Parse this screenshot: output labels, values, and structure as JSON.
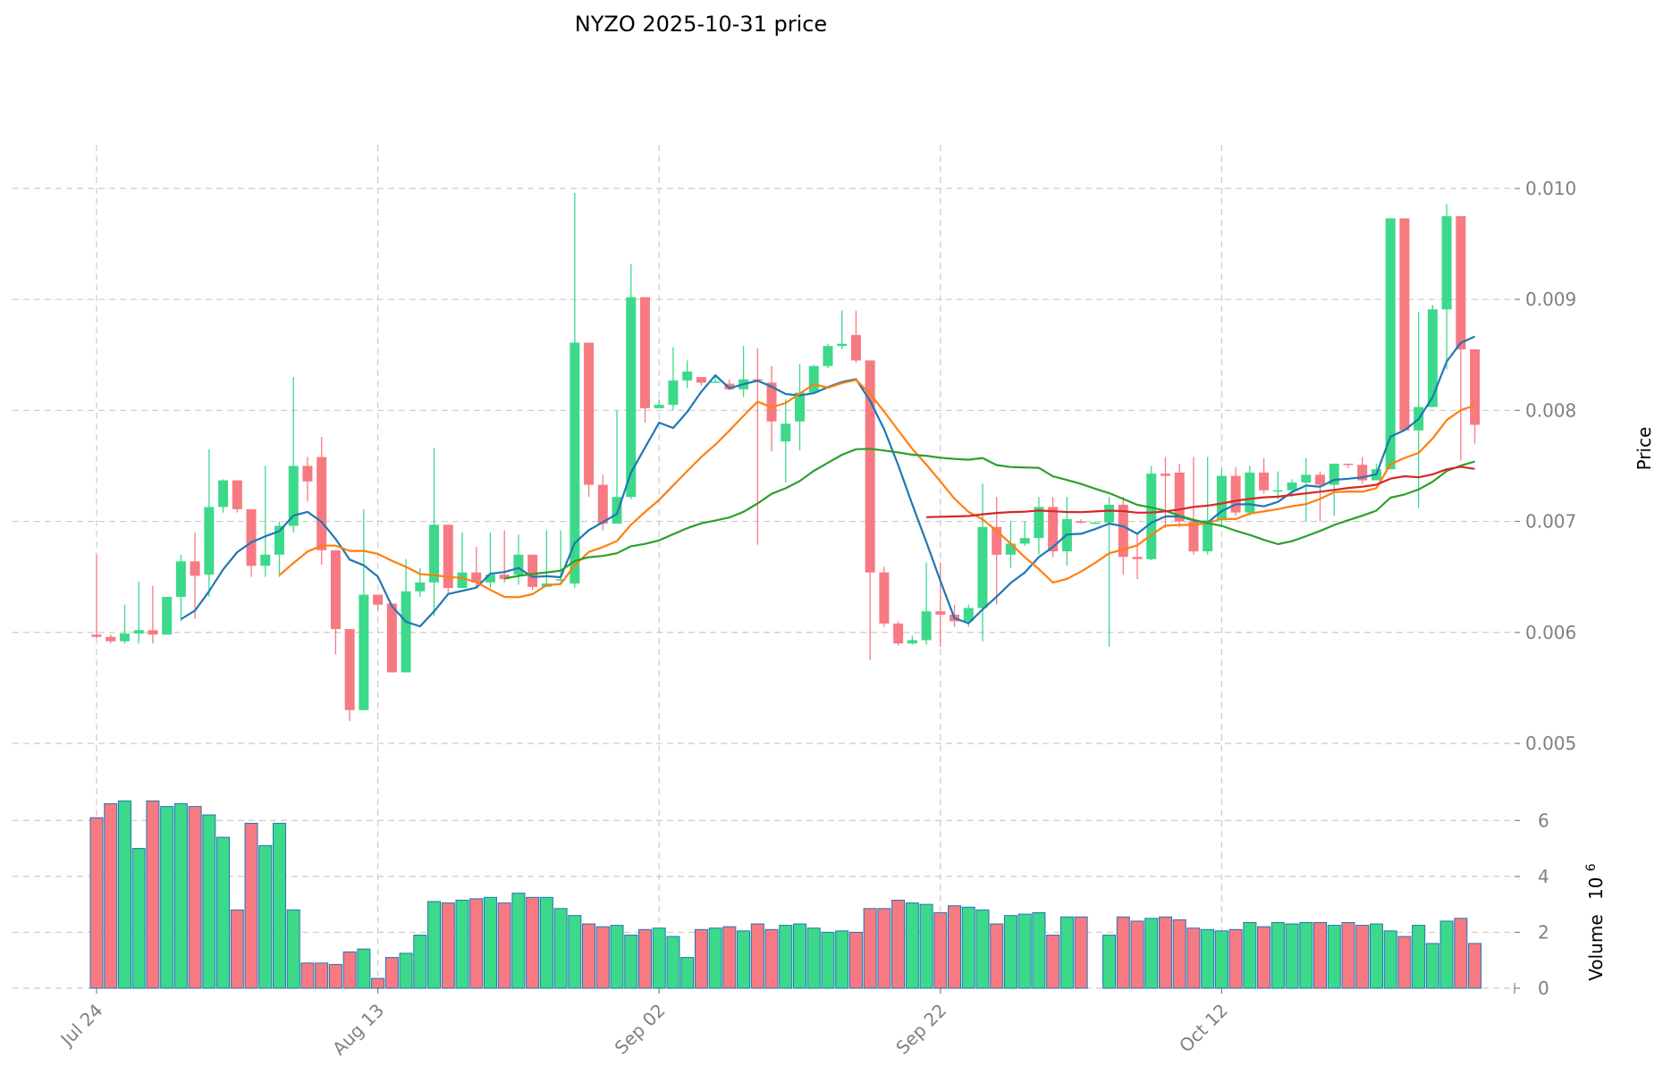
{
  "chart_data": {
    "type": "candlestick",
    "title": "NYZO  2025-10-31  price",
    "ylabel": "Price",
    "volume_ylabel": "Volume",
    "volume_exponent": "10",
    "volume_exponent_power": "6",
    "ylim": [
      0.005,
      0.0102
    ],
    "volume_ylim": [
      0,
      7
    ],
    "x_tick_labels": [
      "Jul 24",
      "Aug 13",
      "Sep 02",
      "Sep 22",
      "Oct 12"
    ],
    "x_tick_index": [
      0,
      20,
      40,
      60,
      80
    ],
    "price_ticks": [
      "0.005",
      "0.006",
      "0.007",
      "0.008",
      "0.009",
      "0.010"
    ],
    "volume_ticks": [
      "0",
      "2",
      "4",
      "6"
    ],
    "colors": {
      "up": "#3dd98a",
      "down": "#f77a82",
      "ma1": "#1f77b4",
      "ma2": "#ff7f0e",
      "ma3": "#2ca02c",
      "ma4": "#d62728"
    },
    "moving_averages": [
      "ma7",
      "ma14",
      "ma30",
      "ma60"
    ],
    "candles": [
      {
        "date": "Jul 24",
        "o": 0.00598,
        "h": 0.0067,
        "l": 0.00595,
        "c": 0.00596,
        "v": 6.1
      },
      {
        "date": "Jul 25",
        "o": 0.00596,
        "h": 0.00598,
        "l": 0.0059,
        "c": 0.00592,
        "v": 6.6
      },
      {
        "date": "Jul 26",
        "o": 0.00592,
        "h": 0.00625,
        "l": 0.0059,
        "c": 0.00599,
        "v": 6.7
      },
      {
        "date": "Jul 27",
        "o": 0.00599,
        "h": 0.00646,
        "l": 0.0059,
        "c": 0.00602,
        "v": 5.0
      },
      {
        "date": "Jul 28",
        "o": 0.00602,
        "h": 0.00642,
        "l": 0.0059,
        "c": 0.00598,
        "v": 6.7
      },
      {
        "date": "Jul 29",
        "o": 0.00598,
        "h": 0.00632,
        "l": 0.00598,
        "c": 0.00632,
        "v": 6.5
      },
      {
        "date": "Jul 30",
        "o": 0.00632,
        "h": 0.0067,
        "l": 0.0061,
        "c": 0.00664,
        "v": 6.6
      },
      {
        "date": "Jul 31",
        "o": 0.00664,
        "h": 0.0069,
        "l": 0.00612,
        "c": 0.00651,
        "v": 6.5
      },
      {
        "date": "Aug 01",
        "o": 0.00652,
        "h": 0.00765,
        "l": 0.00632,
        "c": 0.00713,
        "v": 6.2
      },
      {
        "date": "Aug 02",
        "o": 0.00713,
        "h": 0.00738,
        "l": 0.00708,
        "c": 0.00737,
        "v": 5.4
      },
      {
        "date": "Aug 03",
        "o": 0.00737,
        "h": 0.00737,
        "l": 0.00708,
        "c": 0.00711,
        "v": 2.8
      },
      {
        "date": "Aug 04",
        "o": 0.00711,
        "h": 0.00711,
        "l": 0.0065,
        "c": 0.0066,
        "v": 5.9
      },
      {
        "date": "Aug 05",
        "o": 0.0066,
        "h": 0.0075,
        "l": 0.0065,
        "c": 0.0067,
        "v": 5.1
      },
      {
        "date": "Aug 06",
        "o": 0.0067,
        "h": 0.007,
        "l": 0.0065,
        "c": 0.00696,
        "v": 5.9
      },
      {
        "date": "Aug 07",
        "o": 0.00696,
        "h": 0.0083,
        "l": 0.0069,
        "c": 0.0075,
        "v": 2.8
      },
      {
        "date": "Aug 08",
        "o": 0.0075,
        "h": 0.00758,
        "l": 0.00718,
        "c": 0.00736,
        "v": 0.9
      },
      {
        "date": "Aug 09",
        "o": 0.00758,
        "h": 0.00776,
        "l": 0.00661,
        "c": 0.00674,
        "v": 0.9
      },
      {
        "date": "Aug 10",
        "o": 0.00674,
        "h": 0.00674,
        "l": 0.0058,
        "c": 0.00603,
        "v": 0.85
      },
      {
        "date": "Aug 11",
        "o": 0.00603,
        "h": 0.00603,
        "l": 0.0052,
        "c": 0.0053,
        "v": 1.3
      },
      {
        "date": "Aug 12",
        "o": 0.0053,
        "h": 0.00711,
        "l": 0.0053,
        "c": 0.00634,
        "v": 1.4
      },
      {
        "date": "Aug 13",
        "o": 0.00634,
        "h": 0.00634,
        "l": 0.0062,
        "c": 0.00625,
        "v": 0.35
      },
      {
        "date": "Aug 14",
        "o": 0.00626,
        "h": 0.00626,
        "l": 0.00564,
        "c": 0.00564,
        "v": 1.1
      },
      {
        "date": "Aug 15",
        "o": 0.00564,
        "h": 0.00666,
        "l": 0.00564,
        "c": 0.00637,
        "v": 1.25
      },
      {
        "date": "Aug 16",
        "o": 0.00637,
        "h": 0.00658,
        "l": 0.00632,
        "c": 0.00645,
        "v": 1.9
      },
      {
        "date": "Aug 17",
        "o": 0.00645,
        "h": 0.00766,
        "l": 0.00615,
        "c": 0.00697,
        "v": 3.1
      },
      {
        "date": "Aug 18",
        "o": 0.00697,
        "h": 0.00697,
        "l": 0.00635,
        "c": 0.0064,
        "v": 3.05
      },
      {
        "date": "Aug 19",
        "o": 0.0064,
        "h": 0.0069,
        "l": 0.0064,
        "c": 0.00654,
        "v": 3.15
      },
      {
        "date": "Aug 20",
        "o": 0.00654,
        "h": 0.00677,
        "l": 0.0064,
        "c": 0.00645,
        "v": 3.2
      },
      {
        "date": "Aug 21",
        "o": 0.00645,
        "h": 0.0069,
        "l": 0.0064,
        "c": 0.00652,
        "v": 3.25
      },
      {
        "date": "Aug 22",
        "o": 0.00652,
        "h": 0.00692,
        "l": 0.00645,
        "c": 0.00648,
        "v": 3.05
      },
      {
        "date": "Aug 23",
        "o": 0.00652,
        "h": 0.00688,
        "l": 0.00643,
        "c": 0.0067,
        "v": 3.4
      },
      {
        "date": "Aug 24",
        "o": 0.0067,
        "h": 0.0067,
        "l": 0.00638,
        "c": 0.00641,
        "v": 3.25
      },
      {
        "date": "Aug 25",
        "o": 0.00641,
        "h": 0.00692,
        "l": 0.00641,
        "c": 0.00644,
        "v": 3.25
      },
      {
        "date": "Aug 26",
        "o": 0.00648,
        "h": 0.00692,
        "l": 0.00643,
        "c": 0.00648,
        "v": 2.85
      },
      {
        "date": "Aug 27",
        "o": 0.00644,
        "h": 0.00996,
        "l": 0.0064,
        "c": 0.00861,
        "v": 2.6
      },
      {
        "date": "Aug 28",
        "o": 0.00861,
        "h": 0.00861,
        "l": 0.00722,
        "c": 0.00733,
        "v": 2.3
      },
      {
        "date": "Aug 29",
        "o": 0.00733,
        "h": 0.00742,
        "l": 0.00692,
        "c": 0.00698,
        "v": 2.2
      },
      {
        "date": "Aug 30",
        "o": 0.00698,
        "h": 0.008,
        "l": 0.00698,
        "c": 0.00722,
        "v": 2.25
      },
      {
        "date": "Aug 31",
        "o": 0.00722,
        "h": 0.00932,
        "l": 0.0072,
        "c": 0.00902,
        "v": 1.9
      },
      {
        "date": "Sep 01",
        "o": 0.00902,
        "h": 0.00902,
        "l": 0.00789,
        "c": 0.00802,
        "v": 2.1
      },
      {
        "date": "Sep 02",
        "o": 0.00802,
        "h": 0.0081,
        "l": 0.00802,
        "c": 0.00805,
        "v": 2.15
      },
      {
        "date": "Sep 03",
        "o": 0.00805,
        "h": 0.00857,
        "l": 0.008,
        "c": 0.00827,
        "v": 1.85
      },
      {
        "date": "Sep 04",
        "o": 0.00827,
        "h": 0.00845,
        "l": 0.0082,
        "c": 0.00835,
        "v": 1.1
      },
      {
        "date": "Sep 05",
        "o": 0.0083,
        "h": 0.0083,
        "l": 0.00822,
        "c": 0.00825,
        "v": 2.1
      },
      {
        "date": "Sep 06",
        "o": 0.00825,
        "h": 0.00832,
        "l": 0.00825,
        "c": 0.00826,
        "v": 2.15
      },
      {
        "date": "Sep 07",
        "o": 0.00824,
        "h": 0.00828,
        "l": 0.00818,
        "c": 0.00819,
        "v": 2.2
      },
      {
        "date": "Sep 08",
        "o": 0.00819,
        "h": 0.00858,
        "l": 0.00812,
        "c": 0.00828,
        "v": 2.05
      },
      {
        "date": "Sep 09",
        "o": 0.00828,
        "h": 0.00856,
        "l": 0.00679,
        "c": 0.00827,
        "v": 2.3
      },
      {
        "date": "Sep 10",
        "o": 0.00825,
        "h": 0.0084,
        "l": 0.00763,
        "c": 0.0079,
        "v": 2.1
      },
      {
        "date": "Sep 11",
        "o": 0.00772,
        "h": 0.0081,
        "l": 0.00735,
        "c": 0.00788,
        "v": 2.25
      },
      {
        "date": "Sep 12",
        "o": 0.0079,
        "h": 0.00842,
        "l": 0.00764,
        "c": 0.00816,
        "v": 2.3
      },
      {
        "date": "Sep 13",
        "o": 0.00816,
        "h": 0.00841,
        "l": 0.00815,
        "c": 0.0084,
        "v": 2.15
      },
      {
        "date": "Sep 14",
        "o": 0.0084,
        "h": 0.0086,
        "l": 0.00838,
        "c": 0.00858,
        "v": 2.0
      },
      {
        "date": "Sep 15",
        "o": 0.00858,
        "h": 0.0089,
        "l": 0.00855,
        "c": 0.0086,
        "v": 2.05
      },
      {
        "date": "Sep 16",
        "o": 0.00868,
        "h": 0.0089,
        "l": 0.00843,
        "c": 0.00845,
        "v": 2.0
      },
      {
        "date": "Sep 17",
        "o": 0.00845,
        "h": 0.00845,
        "l": 0.00575,
        "c": 0.00654,
        "v": 2.85
      },
      {
        "date": "Sep 18",
        "o": 0.00654,
        "h": 0.00659,
        "l": 0.00605,
        "c": 0.00608,
        "v": 2.85
      },
      {
        "date": "Sep 19",
        "o": 0.00608,
        "h": 0.0061,
        "l": 0.00588,
        "c": 0.0059,
        "v": 3.15
      },
      {
        "date": "Sep 20",
        "o": 0.0059,
        "h": 0.00597,
        "l": 0.00589,
        "c": 0.00593,
        "v": 3.05
      },
      {
        "date": "Sep 21",
        "o": 0.00593,
        "h": 0.00663,
        "l": 0.00589,
        "c": 0.00619,
        "v": 3.0
      },
      {
        "date": "Sep 22",
        "o": 0.00619,
        "h": 0.00663,
        "l": 0.00587,
        "c": 0.00616,
        "v": 2.7
      },
      {
        "date": "Sep 23",
        "o": 0.00616,
        "h": 0.00625,
        "l": 0.00605,
        "c": 0.0061,
        "v": 2.95
      },
      {
        "date": "Sep 24",
        "o": 0.0061,
        "h": 0.00625,
        "l": 0.00605,
        "c": 0.00622,
        "v": 2.9
      },
      {
        "date": "Sep 25",
        "o": 0.00622,
        "h": 0.00734,
        "l": 0.00592,
        "c": 0.00695,
        "v": 2.8
      },
      {
        "date": "Sep 26",
        "o": 0.00695,
        "h": 0.00722,
        "l": 0.00625,
        "c": 0.0067,
        "v": 2.3
      },
      {
        "date": "Sep 27",
        "o": 0.0067,
        "h": 0.007,
        "l": 0.00658,
        "c": 0.0068,
        "v": 2.6
      },
      {
        "date": "Sep 28",
        "o": 0.0068,
        "h": 0.007,
        "l": 0.00678,
        "c": 0.00685,
        "v": 2.65
      },
      {
        "date": "Sep 29",
        "o": 0.00685,
        "h": 0.00722,
        "l": 0.0067,
        "c": 0.00713,
        "v": 2.7
      },
      {
        "date": "Sep 30",
        "o": 0.00713,
        "h": 0.00722,
        "l": 0.00668,
        "c": 0.00673,
        "v": 1.9
      },
      {
        "date": "Oct 01",
        "o": 0.00673,
        "h": 0.00722,
        "l": 0.0066,
        "c": 0.00702,
        "v": 2.55
      },
      {
        "date": "Oct 02",
        "o": 0.007,
        "h": 0.00702,
        "l": 0.00698,
        "c": 0.00699,
        "v": 2.55
      },
      {
        "date": "Oct 03",
        "o": 0.00699,
        "h": 0.007,
        "l": 0.00698,
        "c": 0.00699,
        "v": 0
      },
      {
        "date": "Oct 04",
        "o": 0.00699,
        "h": 0.00722,
        "l": 0.00587,
        "c": 0.00715,
        "v": 1.9
      },
      {
        "date": "Oct 05",
        "o": 0.00715,
        "h": 0.00722,
        "l": 0.00652,
        "c": 0.00668,
        "v": 2.55
      },
      {
        "date": "Oct 06",
        "o": 0.00668,
        "h": 0.0069,
        "l": 0.00648,
        "c": 0.00666,
        "v": 2.4
      },
      {
        "date": "Oct 07",
        "o": 0.00666,
        "h": 0.0075,
        "l": 0.00665,
        "c": 0.00743,
        "v": 2.5
      },
      {
        "date": "Oct 08",
        "o": 0.00743,
        "h": 0.00758,
        "l": 0.00694,
        "c": 0.00741,
        "v": 2.55
      },
      {
        "date": "Oct 09",
        "o": 0.00744,
        "h": 0.00752,
        "l": 0.00695,
        "c": 0.007,
        "v": 2.45
      },
      {
        "date": "Oct 10",
        "o": 0.007,
        "h": 0.00758,
        "l": 0.0067,
        "c": 0.00673,
        "v": 2.15
      },
      {
        "date": "Oct 11",
        "o": 0.00673,
        "h": 0.00758,
        "l": 0.0067,
        "c": 0.00701,
        "v": 2.1
      },
      {
        "date": "Oct 12",
        "o": 0.00701,
        "h": 0.00748,
        "l": 0.00695,
        "c": 0.00741,
        "v": 2.05
      },
      {
        "date": "Oct 13",
        "o": 0.00741,
        "h": 0.00749,
        "l": 0.00705,
        "c": 0.00708,
        "v": 2.1
      },
      {
        "date": "Oct 14",
        "o": 0.00708,
        "h": 0.0075,
        "l": 0.00705,
        "c": 0.00744,
        "v": 2.35
      },
      {
        "date": "Oct 15",
        "o": 0.00744,
        "h": 0.00757,
        "l": 0.00725,
        "c": 0.00728,
        "v": 2.2
      },
      {
        "date": "Oct 16",
        "o": 0.00728,
        "h": 0.00745,
        "l": 0.0072,
        "c": 0.00728,
        "v": 2.35
      },
      {
        "date": "Oct 17",
        "o": 0.00728,
        "h": 0.00738,
        "l": 0.00722,
        "c": 0.00735,
        "v": 2.3
      },
      {
        "date": "Oct 18",
        "o": 0.00735,
        "h": 0.00757,
        "l": 0.007,
        "c": 0.00742,
        "v": 2.35
      },
      {
        "date": "Oct 19",
        "o": 0.00742,
        "h": 0.00745,
        "l": 0.007,
        "c": 0.00733,
        "v": 2.35
      },
      {
        "date": "Oct 20",
        "o": 0.00733,
        "h": 0.00752,
        "l": 0.00705,
        "c": 0.00752,
        "v": 2.25
      },
      {
        "date": "Oct 21",
        "o": 0.00752,
        "h": 0.00752,
        "l": 0.00748,
        "c": 0.00751,
        "v": 2.35
      },
      {
        "date": "Oct 22",
        "o": 0.00751,
        "h": 0.00758,
        "l": 0.00734,
        "c": 0.00737,
        "v": 2.25
      },
      {
        "date": "Oct 23",
        "o": 0.00737,
        "h": 0.00752,
        "l": 0.00737,
        "c": 0.00747,
        "v": 2.3
      },
      {
        "date": "Oct 24",
        "o": 0.00747,
        "h": 0.00973,
        "l": 0.00747,
        "c": 0.00973,
        "v": 2.05
      },
      {
        "date": "Oct 25",
        "o": 0.00973,
        "h": 0.00973,
        "l": 0.00782,
        "c": 0.00782,
        "v": 1.85
      },
      {
        "date": "Oct 26",
        "o": 0.00782,
        "h": 0.00889,
        "l": 0.00712,
        "c": 0.00803,
        "v": 2.25
      },
      {
        "date": "Oct 27",
        "o": 0.00803,
        "h": 0.00895,
        "l": 0.00803,
        "c": 0.00891,
        "v": 1.6
      },
      {
        "date": "Oct 28",
        "o": 0.00891,
        "h": 0.00986,
        "l": 0.00837,
        "c": 0.00975,
        "v": 2.4
      },
      {
        "date": "Oct 29",
        "o": 0.00975,
        "h": 0.00975,
        "l": 0.00755,
        "c": 0.00855,
        "v": 2.5
      },
      {
        "date": "Oct 30",
        "o": 0.00855,
        "h": 0.00855,
        "l": 0.0077,
        "c": 0.00787,
        "v": 1.6
      }
    ]
  }
}
